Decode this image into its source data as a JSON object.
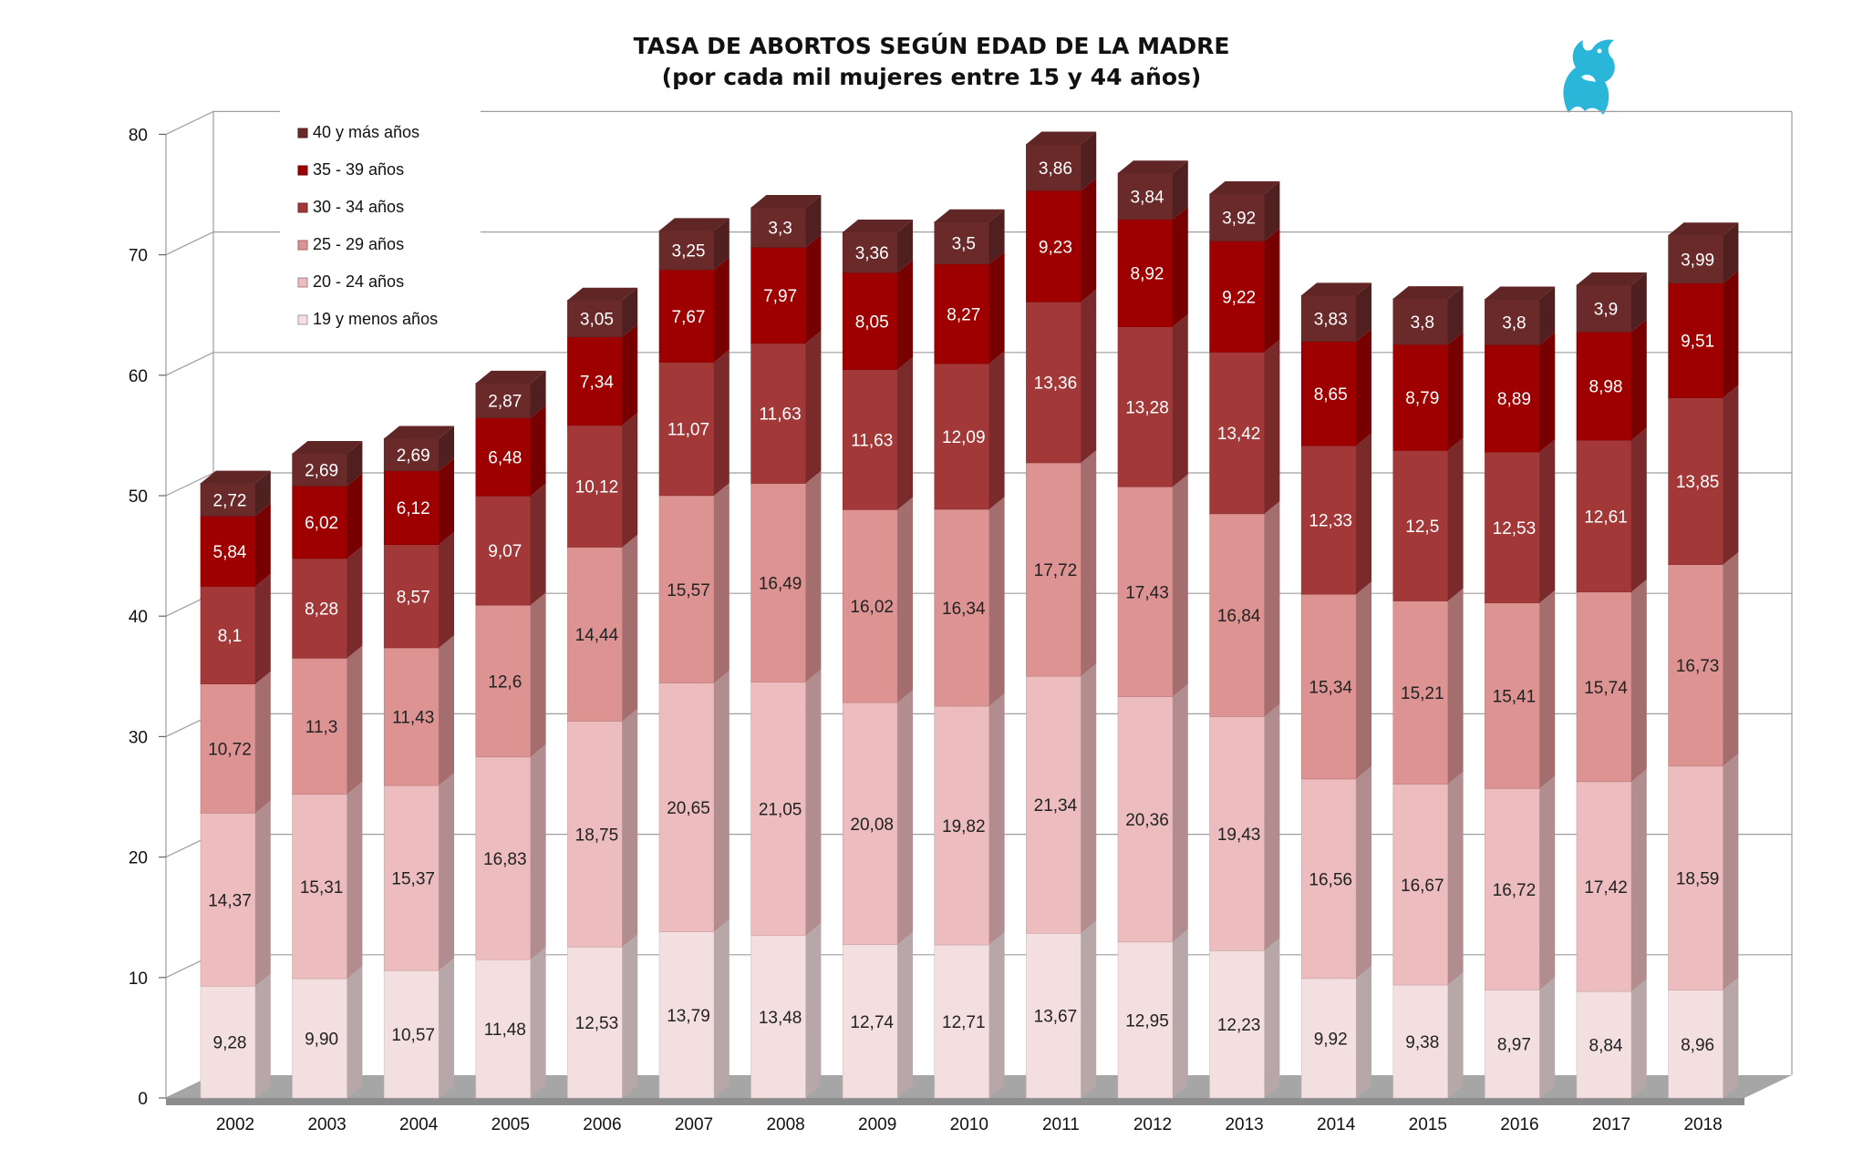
{
  "chart_data": {
    "type": "bar",
    "stacked": true,
    "title": "TASA DE ABORTOS SEGÚN EDAD DE LA MADRE",
    "subtitle": "(por cada mil mujeres entre 15 y 44 años)",
    "categories": [
      "2002",
      "2003",
      "2004",
      "2005",
      "2006",
      "2007",
      "2008",
      "2009",
      "2010",
      "2011",
      "2012",
      "2013",
      "2014",
      "2015",
      "2016",
      "2017",
      "2018"
    ],
    "ylim": [
      0,
      80
    ],
    "yticks": [
      0,
      10,
      20,
      30,
      40,
      50,
      60,
      70,
      80
    ],
    "grid": true,
    "legend_position": "top-left",
    "series": [
      {
        "name": "19 y menos años",
        "color": "#f4dfe0",
        "values": [
          9.28,
          9.9,
          10.57,
          11.48,
          12.53,
          13.79,
          13.48,
          12.74,
          12.71,
          13.67,
          12.95,
          12.23,
          9.92,
          9.38,
          8.97,
          8.84,
          8.96
        ],
        "labels": [
          "9,28",
          "9,90",
          "10,57",
          "11,48",
          "12,53",
          "13,79",
          "13,48",
          "12,74",
          "12,71",
          "13,67",
          "12,95",
          "12,23",
          "9,92",
          "9,38",
          "8,97",
          "8,84",
          "8,96"
        ]
      },
      {
        "name": "20 - 24 años",
        "color": "#ecbcbe",
        "values": [
          14.37,
          15.31,
          15.37,
          16.83,
          18.75,
          20.65,
          21.05,
          20.08,
          19.82,
          21.34,
          20.36,
          19.43,
          16.56,
          16.67,
          16.72,
          17.42,
          18.59
        ],
        "labels": [
          "14,37",
          "15,31",
          "15,37",
          "16,83",
          "18,75",
          "20,65",
          "21,05",
          "20,08",
          "19,82",
          "21,34",
          "20,36",
          "19,43",
          "16,56",
          "16,67",
          "16,72",
          "17,42",
          "18,59"
        ]
      },
      {
        "name": "25 - 29 años",
        "color": "#dc9392",
        "values": [
          10.72,
          11.3,
          11.43,
          12.6,
          14.44,
          15.57,
          16.49,
          16.02,
          16.34,
          17.72,
          17.43,
          16.84,
          15.34,
          15.21,
          15.41,
          15.74,
          16.73
        ],
        "labels": [
          "10,72",
          "11,3",
          "11,43",
          "12,6",
          "14,44",
          "15,57",
          "16,49",
          "16,02",
          "16,34",
          "17,72",
          "17,43",
          "16,84",
          "15,34",
          "15,21",
          "15,41",
          "15,74",
          "16,73"
        ]
      },
      {
        "name": "30 - 34 años",
        "color": "#a23838",
        "values": [
          8.1,
          8.28,
          8.57,
          9.07,
          10.12,
          11.07,
          11.63,
          11.63,
          12.09,
          13.36,
          13.28,
          13.42,
          12.33,
          12.5,
          12.53,
          12.61,
          13.85
        ],
        "labels": [
          "8,1",
          "8,28",
          "8,57",
          "9,07",
          "10,12",
          "11,07",
          "11,63",
          "11,63",
          "12,09",
          "13,36",
          "13,28",
          "13,42",
          "12,33",
          "12,5",
          "12,53",
          "12,61",
          "13,85"
        ]
      },
      {
        "name": "35 - 39 años",
        "color": "#9e0000",
        "values": [
          5.84,
          6.02,
          6.12,
          6.48,
          7.34,
          7.67,
          7.97,
          8.05,
          8.27,
          9.23,
          8.92,
          9.22,
          8.65,
          8.79,
          8.89,
          8.98,
          9.51
        ],
        "labels": [
          "5,84",
          "6,02",
          "6,12",
          "6,48",
          "7,34",
          "7,67",
          "7,97",
          "8,05",
          "8,27",
          "9,23",
          "8,92",
          "9,22",
          "8,65",
          "8,79",
          "8,89",
          "8,98",
          "9,51"
        ]
      },
      {
        "name": "40 y más años",
        "color": "#6b2a2a",
        "values": [
          2.72,
          2.69,
          2.69,
          2.87,
          3.05,
          3.25,
          3.3,
          3.36,
          3.5,
          3.86,
          3.84,
          3.92,
          3.83,
          3.8,
          3.8,
          3.9,
          3.99
        ],
        "labels": [
          "2,72",
          "2,69",
          "2,69",
          "2,87",
          "3,05",
          "3,25",
          "3,3",
          "3,36",
          "3,5",
          "3,86",
          "3,84",
          "3,92",
          "3,83",
          "3,8",
          "3,8",
          "3,9",
          "3,99"
        ]
      }
    ]
  },
  "logo": {
    "icon": "griffin-logo-icon",
    "color": "#29b6d9"
  }
}
